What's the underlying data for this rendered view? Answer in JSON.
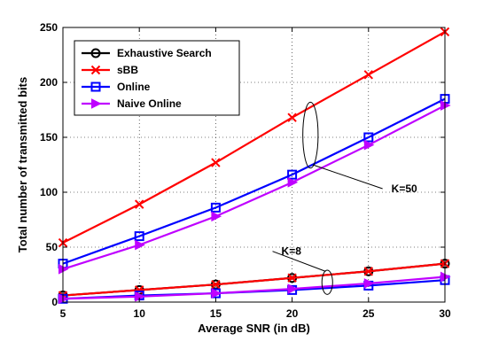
{
  "chart_data": {
    "type": "line",
    "title": "",
    "xlabel": "Average SNR (in dB)",
    "ylabel": "Total number of transmitted bits",
    "xlim": [
      5,
      30
    ],
    "ylim": [
      0,
      250
    ],
    "xticks": [
      5,
      10,
      15,
      20,
      25,
      30
    ],
    "yticks": [
      0,
      50,
      100,
      150,
      200,
      250
    ],
    "grid": true,
    "legend_position": "top-left",
    "x": [
      5,
      10,
      15,
      20,
      25,
      30
    ],
    "series": [
      {
        "name": "Exhaustive Search",
        "color": "#000000",
        "marker": "circle",
        "group": "K=8",
        "values": [
          6,
          11,
          16,
          22,
          28,
          35
        ]
      },
      {
        "name": "sBB",
        "color": "#ff0000",
        "marker": "x",
        "group": "K=50",
        "values": [
          54,
          89,
          127,
          168,
          207,
          246
        ]
      },
      {
        "name": "sBB",
        "color": "#ff0000",
        "marker": "x",
        "group": "K=8",
        "values": [
          6,
          11,
          16,
          22,
          28,
          35
        ]
      },
      {
        "name": "Online",
        "color": "#0000ff",
        "marker": "square",
        "group": "K=50",
        "values": [
          35,
          60,
          86,
          116,
          150,
          185
        ]
      },
      {
        "name": "Online",
        "color": "#0000ff",
        "marker": "square",
        "group": "K=8",
        "values": [
          3,
          6,
          8,
          11,
          15,
          20
        ]
      },
      {
        "name": "Naive Online",
        "color": "#bf00ff",
        "marker": "triangle-right",
        "group": "K=50",
        "values": [
          30,
          52,
          78,
          109,
          143,
          179
        ]
      },
      {
        "name": "Naive Online",
        "color": "#bf00ff",
        "marker": "triangle-right",
        "group": "K=8",
        "values": [
          3,
          5,
          8,
          12,
          17,
          23
        ]
      }
    ],
    "legend": [
      {
        "label": "Exhaustive Search",
        "color": "#000000",
        "marker": "circle"
      },
      {
        "label": "sBB",
        "color": "#ff0000",
        "marker": "x"
      },
      {
        "label": "Online",
        "color": "#0000ff",
        "marker": "square"
      },
      {
        "label": "Naive Online",
        "color": "#bf00ff",
        "marker": "triangle-right"
      }
    ],
    "annotations": [
      {
        "text": "K=50",
        "x": 26.5,
        "y": 100,
        "ellipse_x": 21.2,
        "ellipse_y": 152,
        "ellipse_rx_x": 0.5,
        "ellipse_ry_y": 30
      },
      {
        "text": "K=8",
        "x": 19.3,
        "y": 43,
        "ellipse_x": 22.3,
        "ellipse_y": 18,
        "ellipse_rx_x": 0.35,
        "ellipse_ry_y": 11
      }
    ]
  }
}
